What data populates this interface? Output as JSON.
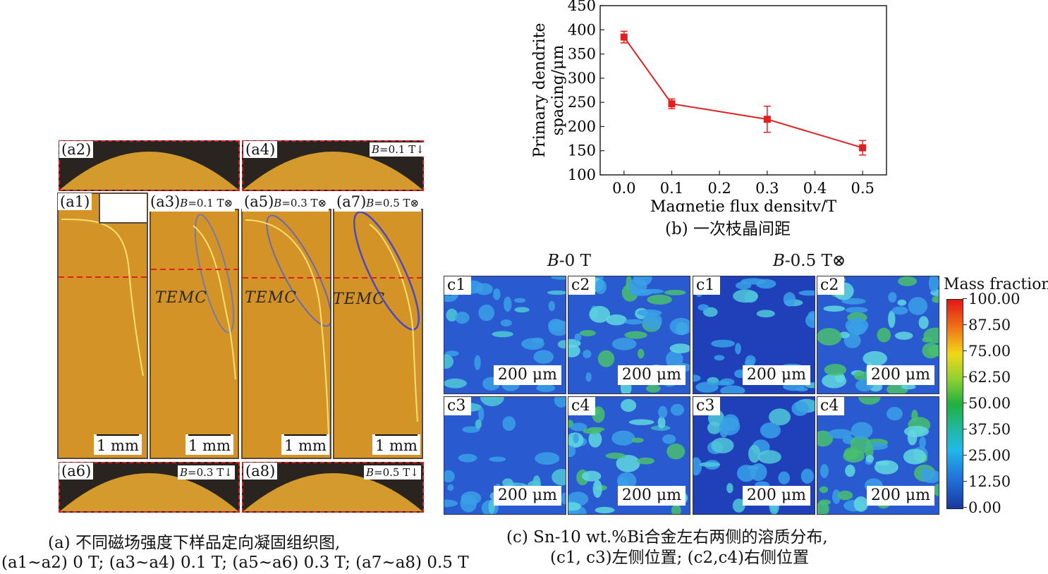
{
  "panel_a": {
    "domes": [
      {
        "label": "(a2)",
        "field": ""
      },
      {
        "label": "(a4)",
        "field_pre": "B",
        "field_post": "=0.1 T"
      },
      {
        "label": "(a6)",
        "field_pre": "B",
        "field_post": "=0.3 T"
      },
      {
        "label": "(a8)",
        "field_pre": "B",
        "field_post": "=0.5 T"
      }
    ],
    "sections": [
      {
        "label": "(a1)",
        "field_pre": "",
        "field_post": "",
        "temc": "",
        "scale": "1 mm"
      },
      {
        "label": "(a3)",
        "field_pre": "B",
        "field_post": "=0.1 T⊗",
        "temc": "TEMC",
        "scale": "1 mm"
      },
      {
        "label": "(a5)",
        "field_pre": "B",
        "field_post": "=0.3 T⊗",
        "temc": "TEMC",
        "scale": "1 mm"
      },
      {
        "label": "(a7)",
        "field_pre": "B",
        "field_post": "=0.5 T⊗",
        "temc": "TEMC",
        "scale": "1 mm"
      }
    ],
    "caption_line1": "(a) 不同磁场强度下样品定向凝固组织图,",
    "caption_line2": "(a1~a2) 0 T; (a3~a4) 0.1 T; (a5~a6) 0.3 T; (a7~a8) 0.5 T"
  },
  "chart_data": {
    "type": "line",
    "xlabel": "Magnetie flux density/T",
    "ylabel_line1": "Primary dendrite",
    "ylabel_line2": "spacing/μm",
    "x_ticks": [
      "0.0",
      "0.1",
      "0.2",
      "0.3",
      "0.4",
      "0.5"
    ],
    "y_ticks": [
      "100",
      "150",
      "200",
      "250",
      "300",
      "350",
      "400",
      "450"
    ],
    "xlim": [
      -0.05,
      0.55
    ],
    "ylim": [
      100,
      450
    ],
    "series": [
      {
        "x": [
          0.0,
          0.1,
          0.3,
          0.5
        ],
        "y": [
          385,
          247,
          215,
          156
        ],
        "err": [
          12,
          10,
          27,
          15
        ],
        "color": "#e02020"
      }
    ],
    "caption": "(b) 一次枝晶间距"
  },
  "panel_c": {
    "group_left_pre": "B",
    "group_left_post": "-0 T",
    "group_right_pre": "B",
    "group_right_post": "-0.5 T⊗",
    "tiles": [
      {
        "label": "c1",
        "scale": "200 μm"
      },
      {
        "label": "c2",
        "scale": "200 μm"
      },
      {
        "label": "c1",
        "scale": "200 μm"
      },
      {
        "label": "c2",
        "scale": "200 μm"
      },
      {
        "label": "c3",
        "scale": "200 μm"
      },
      {
        "label": "c4",
        "scale": "200 μm"
      },
      {
        "label": "c3",
        "scale": "200 μm"
      },
      {
        "label": "c4",
        "scale": "200 μm"
      }
    ],
    "colorbar_title": "Mass fraction",
    "colorbar_ticks": [
      "100.00",
      "87.50",
      "75.00",
      "62.50",
      "50.00",
      "37.50",
      "25.00",
      "12.50",
      "0.00"
    ],
    "caption_line1": "(c)  Sn-10 wt.%Bi合金左右两侧的溶质分布,",
    "caption_line2": "(c1, c3)左侧位置; (c2,c4)右侧位置"
  }
}
